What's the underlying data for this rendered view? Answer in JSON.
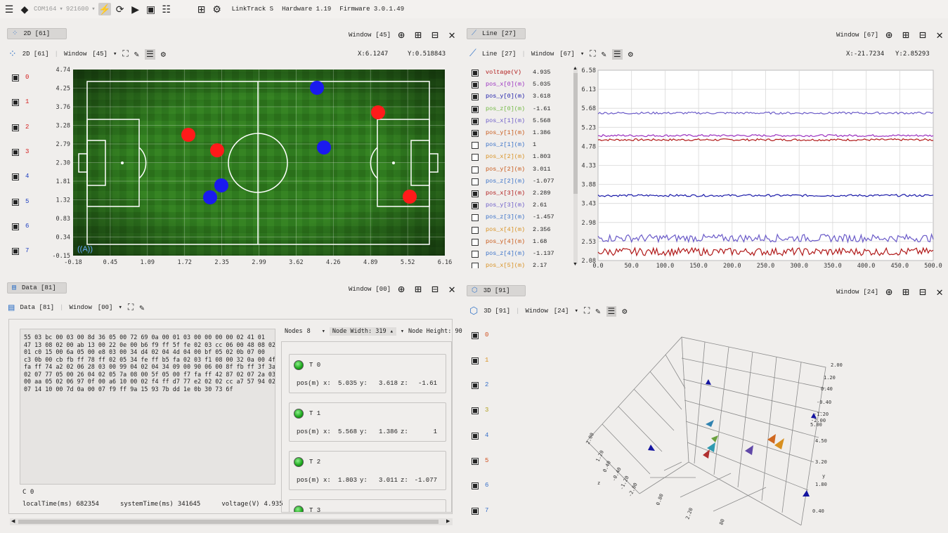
{
  "toolbar": {
    "port": "COM164",
    "baud": "921600",
    "device": "LinkTrack S",
    "hardware": "Hardware 1.19",
    "firmware": "Firmware 3.0.1.49"
  },
  "panel2d": {
    "tab": "2D [61]",
    "window_label": "Window",
    "window_value": "[45]",
    "sub_title": "2D [61]",
    "sub_window": "Window",
    "sub_window_value": "[45]",
    "x_readout": "X:6.1247",
    "y_readout": "Y:0.518843",
    "ids": [
      "0",
      "1",
      "2",
      "3",
      "4",
      "5",
      "6",
      "7"
    ],
    "id_colors": [
      "#d42020",
      "#d42020",
      "#d42020",
      "#d42020",
      "#2040c0",
      "#2040c0",
      "#2040c0",
      "#2040c0"
    ],
    "y_ticks": [
      "4.74",
      "4.25",
      "3.76",
      "3.28",
      "2.79",
      "2.30",
      "1.81",
      "1.32",
      "0.83",
      "0.34",
      "-0.15"
    ],
    "x_ticks": [
      "-0.18",
      "0.45",
      "1.09",
      "1.72",
      "2.35",
      "2.99",
      "3.62",
      "4.26",
      "4.89",
      "5.52",
      "6.16"
    ]
  },
  "panelLine": {
    "tab": "Line [27]",
    "window_label": "Window",
    "window_value": "[67]",
    "sub_title": "Line [27]",
    "sub_window": "Window",
    "sub_window_value": "[67]",
    "x_readout": "X:-21.7234",
    "y_readout": "Y:2.85293",
    "legend": [
      {
        "name": "voltage(V)",
        "value": "4.935",
        "color": "#b01818",
        "checked": true
      },
      {
        "name": "pos_x[0](m)",
        "value": "5.035",
        "color": "#9a30c0",
        "checked": true
      },
      {
        "name": "pos_y[0](m)",
        "value": "3.618",
        "color": "#1818a8",
        "checked": true
      },
      {
        "name": "pos_z[0](m)",
        "value": "-1.61",
        "color": "#70b840",
        "checked": true
      },
      {
        "name": "pos_x[1](m)",
        "value": "5.568",
        "color": "#6a5ac8",
        "checked": true
      },
      {
        "name": "pos_y[1](m)",
        "value": "1.386",
        "color": "#c85818",
        "checked": true
      },
      {
        "name": "pos_z[1](m)",
        "value": "1",
        "color": "#3870c8",
        "checked": false
      },
      {
        "name": "pos_x[2](m)",
        "value": "1.803",
        "color": "#d89020",
        "checked": false
      },
      {
        "name": "pos_y[2](m)",
        "value": "3.011",
        "color": "#c85818",
        "checked": false
      },
      {
        "name": "pos_z[2](m)",
        "value": "-1.077",
        "color": "#3870c8",
        "checked": false
      },
      {
        "name": "pos_x[3](m)",
        "value": "2.289",
        "color": "#b01818",
        "checked": true
      },
      {
        "name": "pos_y[3](m)",
        "value": "2.61",
        "color": "#6a5ac8",
        "checked": true
      },
      {
        "name": "pos_z[3](m)",
        "value": "-1.457",
        "color": "#3870c8",
        "checked": false
      },
      {
        "name": "pos_x[4](m)",
        "value": "2.356",
        "color": "#d89020",
        "checked": false
      },
      {
        "name": "pos_y[4](m)",
        "value": "1.68",
        "color": "#c85818",
        "checked": false
      },
      {
        "name": "pos_z[4](m)",
        "value": "-1.137",
        "color": "#3870c8",
        "checked": false
      },
      {
        "name": "pos_x[5](m)",
        "value": "2.17",
        "color": "#d89020",
        "checked": false
      }
    ],
    "y_ticks": [
      "6.58",
      "6.13",
      "5.68",
      "5.23",
      "4.78",
      "4.33",
      "3.88",
      "3.43",
      "2.98",
      "2.53",
      "2.08"
    ],
    "x_ticks": [
      "0.0",
      "50.0",
      "100.0",
      "150.0",
      "200.0",
      "250.0",
      "300.0",
      "350.0",
      "400.0",
      "450.0",
      "500.0"
    ]
  },
  "panelData": {
    "tab": "Data [81]",
    "window_label": "Window",
    "window_value": "[00]",
    "sub_title": "Data [81]",
    "sub_window": "Window",
    "sub_window_value": "[00]",
    "hex_lines": [
      "55 03 bc 00 03 00 8d 36 05 00 72 69 0a 00 01 03 00 00 00 00 02 41 01",
      "47 13 08 02 00 ab 13 00 22 0e 00 b6 f9 ff 5f fe 02 03 cc 06 00 48 08 02",
      "01 c0 15 00 6a 05 00 e8 03 00 34 d4 02 04 4d 04 00 bf 05 02 0b 07 00",
      "c3 0b 00 cb fb ff 78 ff 02 05 34 fe ff b5 fa 02 03 f1 08 00 32 0a 00 4f",
      "fa ff 74 a2 02 06 28 03 00 99 04 02 04 34 09 00 90 06 00 8f fb ff 3f 3a",
      "02 07 77 05 00 26 04 02 05 7a 08 00 5f 05 00 f7 fa ff 42 87 02 07 2a 03",
      "00 aa 05 02 06 97 0f 00 a6 10 00 02 f4 ff d7 77 e2 02 02 cc a7 57 94 02",
      "07 14 10 00 7d 0a 00 07 f9 ff 9a 15 93 7b dd 1e 0b 30 73 6f"
    ],
    "c_label": "C 0",
    "local_time_label": "localTime(ms)",
    "local_time": "682354",
    "system_time_label": "systemTime(ms)",
    "system_time": "341645",
    "voltage_label": "voltage(V)",
    "voltage": "4.935",
    "nodes_label": "Nodes",
    "nodes_value": "8",
    "node_width_label": "Node Width:",
    "node_width": "319",
    "node_height_label": "Node Height:",
    "node_height": "90",
    "nodes": [
      {
        "name": "T 0",
        "pos_label": "pos(m)",
        "x_label": "x:",
        "x": "5.035",
        "y_label": "y:",
        "y": "3.618",
        "z_label": "z:",
        "z": "-1.61"
      },
      {
        "name": "T 1",
        "pos_label": "pos(m)",
        "x_label": "x:",
        "x": "5.568",
        "y_label": "y:",
        "y": "1.386",
        "z_label": "z:",
        "z": "1"
      },
      {
        "name": "T 2",
        "pos_label": "pos(m)",
        "x_label": "x:",
        "x": "1.803",
        "y_label": "y:",
        "y": "3.011",
        "z_label": "z:",
        "z": "-1.077"
      },
      {
        "name": "T 3"
      }
    ]
  },
  "panel3d": {
    "tab": "3D [91]",
    "window_label": "Window",
    "window_value": "[24]",
    "sub_title": "3D [91]",
    "sub_window": "Window",
    "sub_window_value": "[24]",
    "ids": [
      "0",
      "1",
      "2",
      "3",
      "4",
      "5",
      "6",
      "7"
    ],
    "id_colors": [
      "#d05020",
      "#d89020",
      "#3870c8",
      "#b0a020",
      "#3870c8",
      "#d05020",
      "#3870c8",
      "#3870c8"
    ],
    "axis_ticks_right": [
      "2.00",
      "1.20",
      "0.40",
      "-0.40",
      "-1.20",
      "-2.00",
      "5.00"
    ],
    "axis_ticks_right2": [
      "4.50",
      "3.20",
      "1.80",
      "0.40"
    ],
    "axis_ticks_left": [
      "2.00",
      "1.20",
      "0.40",
      "-0.40",
      "-1.20",
      "-2.00"
    ],
    "axis_ticks_bottom": [
      "0.80",
      "2.20",
      "80"
    ],
    "axis_y_label": "y",
    "axis_z_label": "z"
  }
}
